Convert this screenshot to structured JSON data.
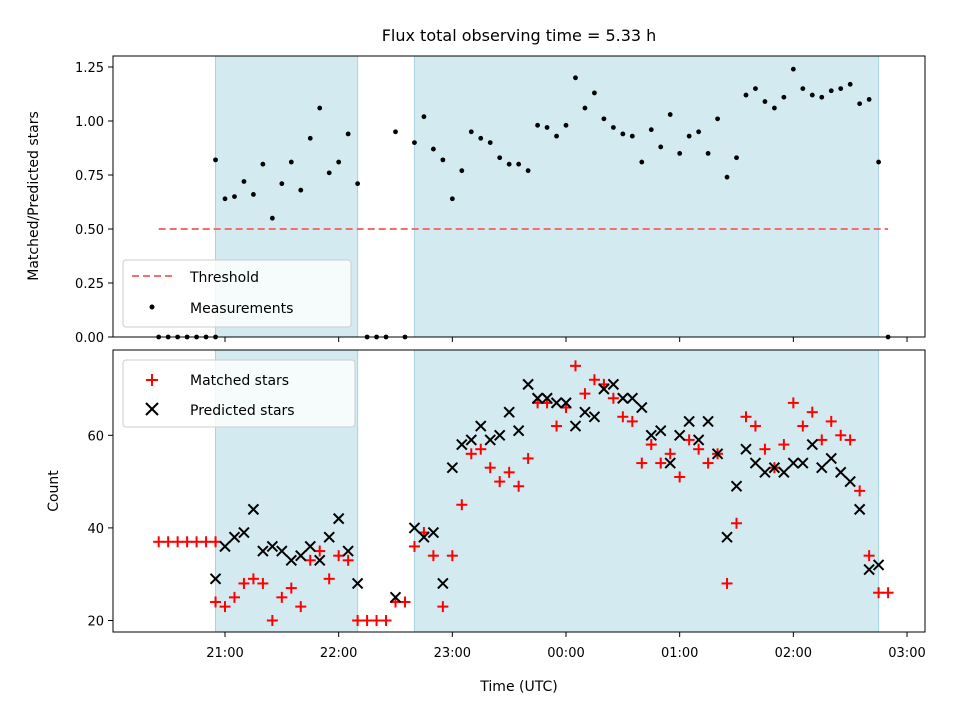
{
  "chart_data": [
    {
      "type": "scatter",
      "title": "Flux total observing time = 5.33 h",
      "xlabel": "",
      "ylabel": "Matched/Predicted stars",
      "ylim": [
        0,
        1.3
      ],
      "yticks": [
        "0.00",
        "0.25",
        "0.50",
        "0.75",
        "1.00",
        "1.25"
      ],
      "legend_position": "lower-left",
      "threshold": {
        "name": "Threshold",
        "y": 0.5,
        "x_start": "20:25",
        "x_end": "02:50",
        "color": "#f07070"
      },
      "shaded_intervals": [
        [
          "20:55",
          "22:10"
        ],
        [
          "22:40",
          "02:45"
        ]
      ],
      "series": [
        {
          "name": "Measurements",
          "color": "#000000",
          "points": [
            [
              "20:25",
              0
            ],
            [
              "20:30",
              0
            ],
            [
              "20:35",
              0
            ],
            [
              "20:40",
              0
            ],
            [
              "20:45",
              0
            ],
            [
              "20:50",
              0
            ],
            [
              "20:55",
              0
            ],
            [
              "20:55",
              0.82
            ],
            [
              "21:00",
              0.64
            ],
            [
              "21:05",
              0.65
            ],
            [
              "21:10",
              0.72
            ],
            [
              "21:15",
              0.66
            ],
            [
              "21:20",
              0.8
            ],
            [
              "21:25",
              0.55
            ],
            [
              "21:30",
              0.71
            ],
            [
              "21:35",
              0.81
            ],
            [
              "21:40",
              0.68
            ],
            [
              "21:45",
              0.92
            ],
            [
              "21:50",
              1.06
            ],
            [
              "21:55",
              0.76
            ],
            [
              "22:00",
              0.81
            ],
            [
              "22:05",
              0.94
            ],
            [
              "22:10",
              0.71
            ],
            [
              "22:15",
              0
            ],
            [
              "22:20",
              0
            ],
            [
              "22:25",
              0
            ],
            [
              "22:30",
              0.95
            ],
            [
              "22:35",
              0
            ],
            [
              "22:40",
              0.9
            ],
            [
              "22:45",
              1.02
            ],
            [
              "22:50",
              0.87
            ],
            [
              "22:55",
              0.82
            ],
            [
              "23:00",
              0.64
            ],
            [
              "23:05",
              0.77
            ],
            [
              "23:10",
              0.95
            ],
            [
              "23:15",
              0.92
            ],
            [
              "23:20",
              0.9
            ],
            [
              "23:25",
              0.83
            ],
            [
              "23:30",
              0.8
            ],
            [
              "23:35",
              0.8
            ],
            [
              "23:40",
              0.77
            ],
            [
              "23:45",
              0.98
            ],
            [
              "23:50",
              0.97
            ],
            [
              "23:55",
              0.93
            ],
            [
              "00:00",
              0.98
            ],
            [
              "00:05",
              1.2
            ],
            [
              "00:10",
              1.06
            ],
            [
              "00:15",
              1.13
            ],
            [
              "00:20",
              1.01
            ],
            [
              "00:25",
              0.97
            ],
            [
              "00:30",
              0.94
            ],
            [
              "00:35",
              0.93
            ],
            [
              "00:40",
              0.81
            ],
            [
              "00:45",
              0.96
            ],
            [
              "00:50",
              0.88
            ],
            [
              "00:55",
              1.03
            ],
            [
              "01:00",
              0.85
            ],
            [
              "01:05",
              0.93
            ],
            [
              "01:10",
              0.95
            ],
            [
              "01:15",
              0.85
            ],
            [
              "01:20",
              1.01
            ],
            [
              "01:25",
              0.74
            ],
            [
              "01:30",
              0.83
            ],
            [
              "01:35",
              1.12
            ],
            [
              "01:40",
              1.15
            ],
            [
              "01:45",
              1.09
            ],
            [
              "01:50",
              1.06
            ],
            [
              "01:55",
              1.11
            ],
            [
              "02:00",
              1.24
            ],
            [
              "02:05",
              1.15
            ],
            [
              "02:10",
              1.12
            ],
            [
              "02:15",
              1.11
            ],
            [
              "02:20",
              1.14
            ],
            [
              "02:25",
              1.15
            ],
            [
              "02:30",
              1.17
            ],
            [
              "02:35",
              1.08
            ],
            [
              "02:40",
              1.1
            ],
            [
              "02:45",
              0.81
            ],
            [
              "02:50",
              0
            ]
          ]
        }
      ]
    },
    {
      "type": "scatter",
      "title": "",
      "xlabel": "Time (UTC)",
      "ylabel": "Count",
      "ylim": [
        17,
        77
      ],
      "yticks": [
        "20",
        "40",
        "60"
      ],
      "xticks": [
        "21:00",
        "22:00",
        "23:00",
        "00:00",
        "01:00",
        "02:00",
        "03:00"
      ],
      "legend_position": "upper-left",
      "shaded_intervals": [
        [
          "20:55",
          "22:10"
        ],
        [
          "22:40",
          "02:45"
        ]
      ],
      "series": [
        {
          "name": "Matched stars",
          "marker": "plus",
          "color": "#ff0000",
          "points": [
            [
              "20:25",
              37
            ],
            [
              "20:30",
              37
            ],
            [
              "20:35",
              37
            ],
            [
              "20:40",
              37
            ],
            [
              "20:45",
              37
            ],
            [
              "20:50",
              37
            ],
            [
              "20:55",
              37
            ],
            [
              "20:55",
              24
            ],
            [
              "21:00",
              23
            ],
            [
              "21:05",
              25
            ],
            [
              "21:10",
              28
            ],
            [
              "21:15",
              29
            ],
            [
              "21:20",
              28
            ],
            [
              "21:25",
              20
            ],
            [
              "21:30",
              25
            ],
            [
              "21:35",
              27
            ],
            [
              "21:40",
              23
            ],
            [
              "21:45",
              33
            ],
            [
              "21:50",
              35
            ],
            [
              "21:55",
              29
            ],
            [
              "22:00",
              34
            ],
            [
              "22:05",
              33
            ],
            [
              "22:10",
              20
            ],
            [
              "22:15",
              20
            ],
            [
              "22:20",
              20
            ],
            [
              "22:25",
              20
            ],
            [
              "22:30",
              24
            ],
            [
              "22:35",
              24
            ],
            [
              "22:40",
              36
            ],
            [
              "22:45",
              39
            ],
            [
              "22:50",
              34
            ],
            [
              "22:55",
              23
            ],
            [
              "23:00",
              34
            ],
            [
              "23:05",
              45
            ],
            [
              "23:10",
              56
            ],
            [
              "23:15",
              57
            ],
            [
              "23:20",
              53
            ],
            [
              "23:25",
              50
            ],
            [
              "23:30",
              52
            ],
            [
              "23:35",
              49
            ],
            [
              "23:40",
              55
            ],
            [
              "23:45",
              67
            ],
            [
              "23:50",
              67
            ],
            [
              "23:55",
              62
            ],
            [
              "00:00",
              66
            ],
            [
              "00:05",
              75
            ],
            [
              "00:10",
              69
            ],
            [
              "00:15",
              72
            ],
            [
              "00:20",
              71
            ],
            [
              "00:25",
              68
            ],
            [
              "00:30",
              64
            ],
            [
              "00:35",
              63
            ],
            [
              "00:40",
              54
            ],
            [
              "00:45",
              58
            ],
            [
              "00:50",
              54
            ],
            [
              "00:55",
              56
            ],
            [
              "01:00",
              51
            ],
            [
              "01:05",
              59
            ],
            [
              "01:10",
              57
            ],
            [
              "01:15",
              54
            ],
            [
              "01:20",
              56
            ],
            [
              "01:25",
              28
            ],
            [
              "01:30",
              41
            ],
            [
              "01:35",
              64
            ],
            [
              "01:40",
              62
            ],
            [
              "01:45",
              57
            ],
            [
              "01:50",
              53
            ],
            [
              "01:55",
              58
            ],
            [
              "02:00",
              67
            ],
            [
              "02:05",
              62
            ],
            [
              "02:10",
              65
            ],
            [
              "02:15",
              59
            ],
            [
              "02:20",
              63
            ],
            [
              "02:25",
              60
            ],
            [
              "02:30",
              59
            ],
            [
              "02:35",
              48
            ],
            [
              "02:40",
              34
            ],
            [
              "02:45",
              26
            ],
            [
              "02:50",
              26
            ]
          ]
        },
        {
          "name": "Predicted stars",
          "marker": "x",
          "color": "#000000",
          "points": [
            [
              "20:55",
              29
            ],
            [
              "21:00",
              36
            ],
            [
              "21:05",
              38
            ],
            [
              "21:10",
              39
            ],
            [
              "21:15",
              44
            ],
            [
              "21:20",
              35
            ],
            [
              "21:25",
              36
            ],
            [
              "21:30",
              35
            ],
            [
              "21:35",
              33
            ],
            [
              "21:40",
              34
            ],
            [
              "21:45",
              36
            ],
            [
              "21:50",
              33
            ],
            [
              "21:55",
              38
            ],
            [
              "22:00",
              42
            ],
            [
              "22:05",
              35
            ],
            [
              "22:10",
              28
            ],
            [
              "22:30",
              25
            ],
            [
              "22:40",
              40
            ],
            [
              "22:45",
              38
            ],
            [
              "22:50",
              39
            ],
            [
              "22:55",
              28
            ],
            [
              "23:00",
              53
            ],
            [
              "23:05",
              58
            ],
            [
              "23:10",
              59
            ],
            [
              "23:15",
              62
            ],
            [
              "23:20",
              59
            ],
            [
              "23:25",
              60
            ],
            [
              "23:30",
              65
            ],
            [
              "23:35",
              61
            ],
            [
              "23:40",
              71
            ],
            [
              "23:45",
              68
            ],
            [
              "23:50",
              68
            ],
            [
              "23:55",
              67
            ],
            [
              "00:00",
              67
            ],
            [
              "00:05",
              62
            ],
            [
              "00:10",
              65
            ],
            [
              "00:15",
              64
            ],
            [
              "00:20",
              70
            ],
            [
              "00:25",
              71
            ],
            [
              "00:30",
              68
            ],
            [
              "00:35",
              68
            ],
            [
              "00:40",
              66
            ],
            [
              "00:45",
              60
            ],
            [
              "00:50",
              61
            ],
            [
              "00:55",
              54
            ],
            [
              "01:00",
              60
            ],
            [
              "01:05",
              63
            ],
            [
              "01:10",
              59
            ],
            [
              "01:15",
              63
            ],
            [
              "01:20",
              56
            ],
            [
              "01:25",
              38
            ],
            [
              "01:30",
              49
            ],
            [
              "01:35",
              57
            ],
            [
              "01:40",
              54
            ],
            [
              "01:45",
              52
            ],
            [
              "01:50",
              53
            ],
            [
              "01:55",
              52
            ],
            [
              "02:00",
              54
            ],
            [
              "02:05",
              54
            ],
            [
              "02:10",
              58
            ],
            [
              "02:15",
              53
            ],
            [
              "02:20",
              55
            ],
            [
              "02:25",
              52
            ],
            [
              "02:30",
              50
            ],
            [
              "02:35",
              44
            ],
            [
              "02:40",
              31
            ],
            [
              "02:45",
              32
            ]
          ]
        }
      ]
    }
  ],
  "colors": {
    "shade": "#d3eaf0",
    "shade_edge": "#a8d4e0",
    "threshold": "#f07070",
    "matched": "#ff0000",
    "predicted": "#000000",
    "measurement": "#000000"
  }
}
